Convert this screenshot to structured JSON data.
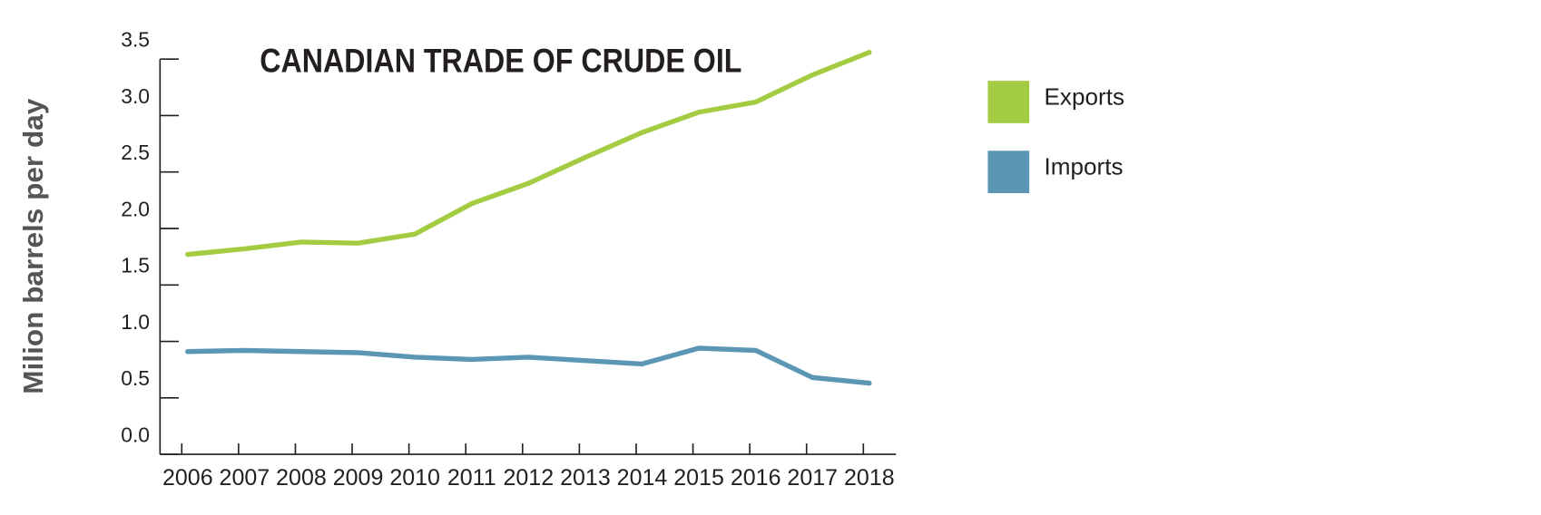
{
  "chart_data": {
    "type": "line",
    "title": "CANADIAN TRADE OF CRUDE OIL",
    "y_label": "Milion barrels per day",
    "categories": [
      "2006",
      "2007",
      "2008",
      "2009",
      "2010",
      "2011",
      "2012",
      "2013",
      "2014",
      "2015",
      "2016",
      "2017",
      "2018"
    ],
    "series": [
      {
        "name": "Exports",
        "color": "#a4cc42",
        "values": [
          1.77,
          1.82,
          1.88,
          1.87,
          1.95,
          2.22,
          2.4,
          2.63,
          2.85,
          3.03,
          3.12,
          3.36,
          3.56
        ]
      },
      {
        "name": "Imports",
        "color": "#5b97b5",
        "values": [
          0.91,
          0.92,
          0.91,
          0.9,
          0.86,
          0.84,
          0.86,
          0.83,
          0.8,
          0.94,
          0.92,
          0.68,
          0.63
        ]
      }
    ],
    "ylim": [
      0,
      3.5
    ],
    "yticks": [
      {
        "value": 0,
        "label": "0.0"
      },
      0.5,
      {
        "value": 1,
        "label": "1.0"
      },
      1.5,
      {
        "value": 2,
        "label": "2.0"
      },
      2.5,
      {
        "value": 3,
        "label": "3.0"
      },
      3.5
    ],
    "grid": false,
    "legend": "right"
  }
}
